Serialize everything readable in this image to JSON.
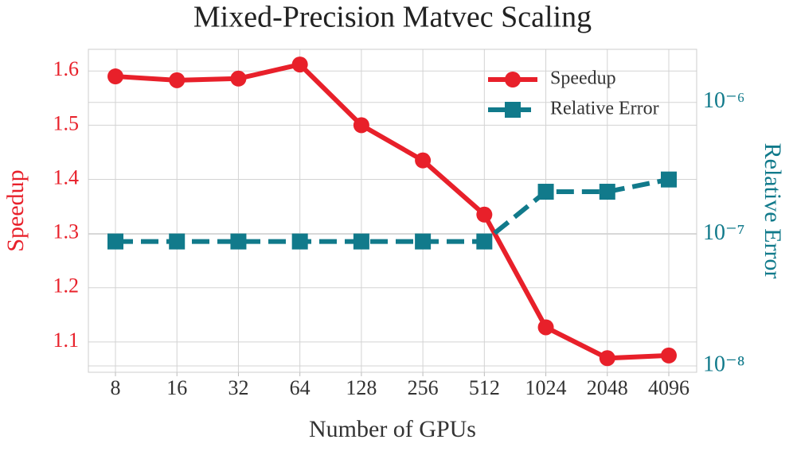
{
  "chart_data": {
    "type": "line",
    "title": "Mixed-Precision Matvec Scaling",
    "xlabel": "Number of GPUs",
    "ylabel": "Speedup",
    "y2label": "Relative Error",
    "categories": [
      "8",
      "16",
      "32",
      "64",
      "128",
      "256",
      "512",
      "1024",
      "2048",
      "4096"
    ],
    "series": [
      {
        "name": "Speedup",
        "color": "#e8202a",
        "dash": "solid",
        "marker": "circle",
        "values": [
          1.59,
          1.583,
          1.586,
          1.612,
          1.5,
          1.435,
          1.335,
          1.127,
          1.07,
          1.075
        ]
      },
      {
        "name": "Relative Error",
        "color": "#117a8b",
        "dash": "dashed",
        "marker": "square",
        "axis": "y2",
        "values": [
          8.8e-08,
          8.8e-08,
          8.8e-08,
          8.8e-08,
          8.8e-08,
          8.8e-08,
          8.8e-08,
          2.1e-07,
          2.1e-07,
          2.6e-07
        ]
      }
    ],
    "ylim": [
      1.044,
      1.64
    ],
    "yticks": [
      1.1,
      1.2,
      1.3,
      1.4,
      1.5,
      1.6
    ],
    "y2lim": [
      8.95e-09,
      2.53e-06
    ],
    "y2log": true,
    "y2ticks": [
      {
        "value": 1e-08,
        "label": "10⁻⁸"
      },
      {
        "value": 1e-07,
        "label": "10⁻⁷"
      },
      {
        "value": 1e-06,
        "label": "10⁻⁶"
      }
    ],
    "grid": true,
    "legend": "upper right"
  }
}
